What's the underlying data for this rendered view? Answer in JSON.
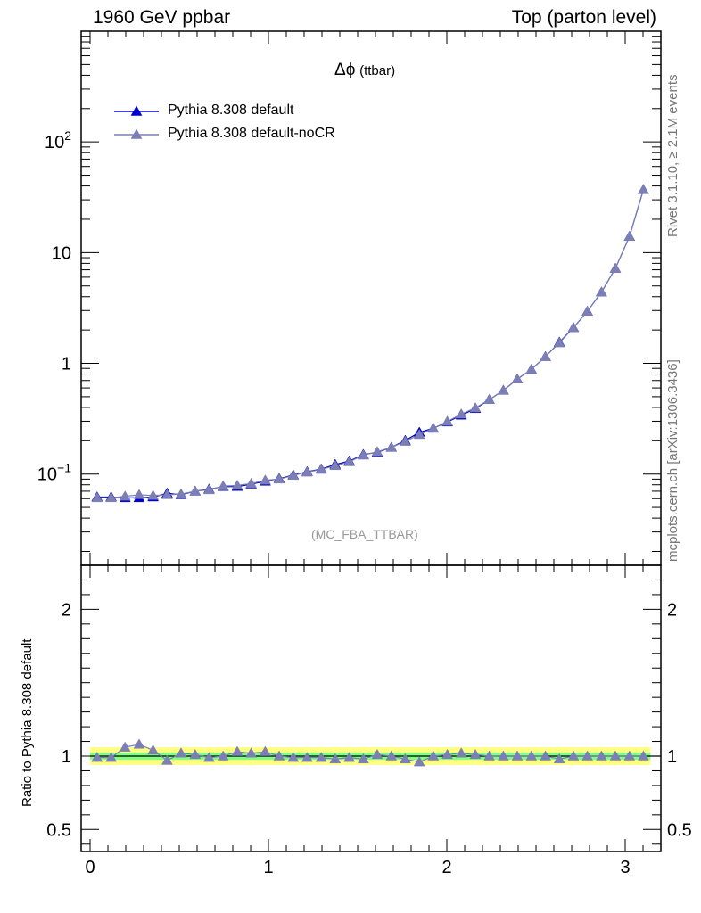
{
  "header": {
    "left": "1960 GeV ppbar",
    "right": "Top (parton level)"
  },
  "side_labels": {
    "rivet": "Rivet 3.1.10, ≥ 2.1M events",
    "source": "mcplots.cern.ch [arXiv:1306.3436]"
  },
  "plot_title": {
    "symbol": "Δϕ",
    "suffix": "(ttbar)"
  },
  "analysis_label": "(MC_FBA_TTBAR)",
  "ratio_ylabel": "Ratio to Pythia 8.308 default",
  "colors": {
    "default": "#0000cc",
    "nocr": "#7b7fb5",
    "band_green": "#80ff80",
    "band_yellow": "#ffff80"
  },
  "chart_data": [
    {
      "type": "line",
      "panel": "main",
      "yscale": "log",
      "xlim": [
        -0.05,
        3.2
      ],
      "ylim": [
        0.015,
        1000
      ],
      "grid": false,
      "legend_position": "top-left",
      "y_tick_labels": [
        {
          "value": 0.1,
          "base": "10",
          "exp": "−1"
        },
        {
          "value": 1,
          "base": "1",
          "exp": ""
        },
        {
          "value": 10,
          "base": "10",
          "exp": ""
        },
        {
          "value": 100,
          "base": "10",
          "exp": "2"
        }
      ],
      "x": [
        0.039,
        0.118,
        0.196,
        0.275,
        0.353,
        0.432,
        0.51,
        0.589,
        0.667,
        0.746,
        0.825,
        0.903,
        0.982,
        1.06,
        1.139,
        1.217,
        1.296,
        1.374,
        1.453,
        1.532,
        1.61,
        1.689,
        1.767,
        1.846,
        1.924,
        2.003,
        2.081,
        2.16,
        2.238,
        2.317,
        2.395,
        2.474,
        2.553,
        2.631,
        2.71,
        2.788,
        2.867,
        2.945,
        3.024,
        3.102
      ],
      "series": [
        {
          "name": "Pythia 8.308 default",
          "values": [
            0.062,
            0.062,
            0.061,
            0.061,
            0.062,
            0.067,
            0.065,
            0.07,
            0.073,
            0.077,
            0.077,
            0.081,
            0.086,
            0.091,
            0.098,
            0.105,
            0.111,
            0.122,
            0.131,
            0.15,
            0.157,
            0.174,
            0.201,
            0.238,
            0.259,
            0.295,
            0.34,
            0.39,
            0.47,
            0.57,
            0.72,
            0.88,
            1.15,
            1.55,
            2.1,
            2.95,
            4.4,
            7.2,
            14.0,
            37.0
          ]
        },
        {
          "name": "Pythia 8.308 default-noCR",
          "values": [
            0.061,
            0.061,
            0.063,
            0.065,
            0.064,
            0.065,
            0.066,
            0.07,
            0.072,
            0.078,
            0.079,
            0.082,
            0.088,
            0.09,
            0.097,
            0.104,
            0.11,
            0.119,
            0.129,
            0.148,
            0.159,
            0.174,
            0.197,
            0.227,
            0.259,
            0.299,
            0.348,
            0.396,
            0.47,
            0.57,
            0.72,
            0.88,
            1.15,
            1.53,
            2.1,
            2.95,
            4.4,
            7.2,
            14.0,
            37.0
          ]
        }
      ]
    },
    {
      "type": "line",
      "panel": "ratio",
      "ylabel": "Ratio to Pythia 8.308 default",
      "xlim": [
        -0.05,
        3.2
      ],
      "ylim": [
        0.35,
        2.3
      ],
      "x_ticks": [
        0,
        1,
        2,
        3
      ],
      "y_ticks": [
        0.5,
        1,
        2
      ],
      "x": [
        0.039,
        0.118,
        0.196,
        0.275,
        0.353,
        0.432,
        0.51,
        0.589,
        0.667,
        0.746,
        0.825,
        0.903,
        0.982,
        1.06,
        1.139,
        1.217,
        1.296,
        1.374,
        1.453,
        1.532,
        1.61,
        1.689,
        1.767,
        1.846,
        1.924,
        2.003,
        2.081,
        2.16,
        2.238,
        2.317,
        2.395,
        2.474,
        2.553,
        2.631,
        2.71,
        2.788,
        2.867,
        2.945,
        3.024,
        3.102
      ],
      "series": [
        {
          "name": "Pythia 8.308 default-noCR",
          "values": [
            0.99,
            0.99,
            1.06,
            1.08,
            1.04,
            0.97,
            1.02,
            1.01,
            0.99,
            1.0,
            1.03,
            1.02,
            1.03,
            1.0,
            0.99,
            0.99,
            0.99,
            0.98,
            0.99,
            0.98,
            1.01,
            1.0,
            0.98,
            0.96,
            1.0,
            1.01,
            1.02,
            1.01,
            1.0,
            1.0,
            1.0,
            1.0,
            1.0,
            0.98,
            1.0,
            1.0,
            1.0,
            1.0,
            1.0,
            1.0
          ]
        }
      ],
      "band_green_halfwidth": 0.025,
      "band_yellow_halfwidth": 0.06
    }
  ]
}
